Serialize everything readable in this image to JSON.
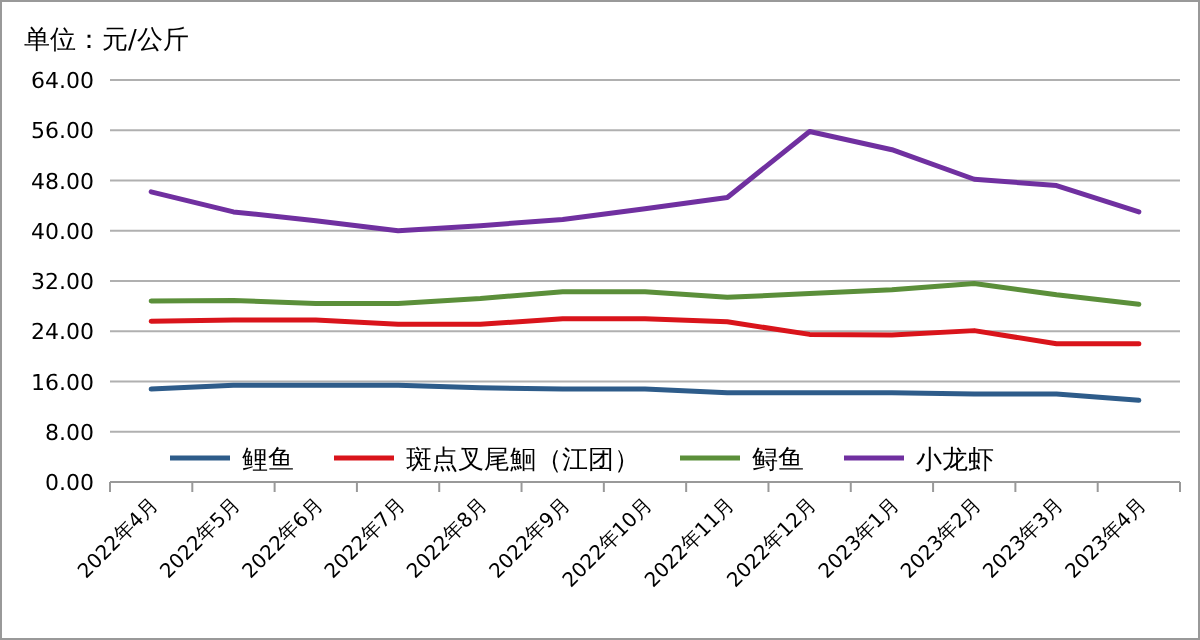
{
  "chart_data": {
    "type": "line",
    "title": "单位：元/公斤",
    "categories": [
      "2022年4月",
      "2022年5月",
      "2022年6月",
      "2022年7月",
      "2022年8月",
      "2022年9月",
      "2022年10月",
      "2022年11月",
      "2022年12月",
      "2023年1月",
      "2023年2月",
      "2023年3月",
      "2023年4月"
    ],
    "series": [
      {
        "name": "鲤鱼",
        "color": "#2e5c8a",
        "values": [
          14.8,
          15.4,
          15.4,
          15.4,
          15.0,
          14.8,
          14.8,
          14.2,
          14.2,
          14.2,
          14.0,
          14.0,
          13.0
        ]
      },
      {
        "name": "斑点叉尾鮰（江团）",
        "color": "#d9141b",
        "values": [
          25.6,
          25.8,
          25.8,
          25.1,
          25.1,
          26.0,
          26.0,
          25.5,
          23.5,
          23.4,
          24.1,
          22.0,
          22.0
        ]
      },
      {
        "name": "鲟鱼",
        "color": "#5b8f3a",
        "values": [
          28.8,
          28.9,
          28.4,
          28.4,
          29.2,
          30.3,
          30.3,
          29.4,
          30.0,
          30.6,
          31.6,
          29.8,
          28.3
        ]
      },
      {
        "name": "小龙虾",
        "color": "#7030a0",
        "values": [
          46.2,
          43.0,
          41.6,
          40.0,
          40.8,
          41.8,
          43.5,
          45.3,
          55.8,
          52.9,
          48.2,
          47.2,
          43.0
        ]
      }
    ],
    "ylim": [
      0,
      64
    ],
    "yticks": [
      {
        "value": 0,
        "label": "0.00"
      },
      {
        "value": 8,
        "label": "8.00"
      },
      {
        "value": 16,
        "label": "16.00"
      },
      {
        "value": 24,
        "label": "24.00"
      },
      {
        "value": 32,
        "label": "32.00"
      },
      {
        "value": 40,
        "label": "40.00"
      },
      {
        "value": 48,
        "label": "48.00"
      },
      {
        "value": 56,
        "label": "56.00"
      },
      {
        "value": 64,
        "label": "64.00"
      }
    ],
    "grid": "y",
    "legend": "bottom",
    "marker": "none",
    "line_style": "solid"
  }
}
